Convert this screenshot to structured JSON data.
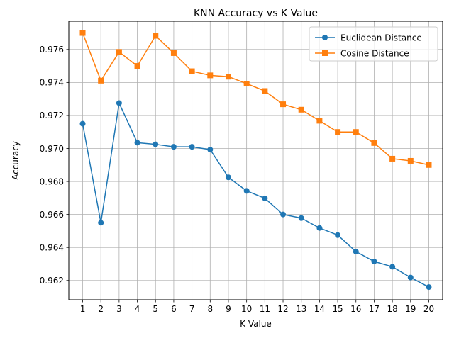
{
  "chart_data": {
    "type": "line",
    "title": "KNN Accuracy vs K Value",
    "xlabel": "K Value",
    "ylabel": "Accuracy",
    "x": [
      1,
      2,
      3,
      4,
      5,
      6,
      7,
      8,
      9,
      10,
      11,
      12,
      13,
      14,
      15,
      16,
      17,
      18,
      19,
      20
    ],
    "xticks": [
      "1",
      "2",
      "3",
      "4",
      "5",
      "6",
      "7",
      "8",
      "9",
      "10",
      "11",
      "12",
      "13",
      "14",
      "15",
      "16",
      "17",
      "18",
      "19",
      "20"
    ],
    "xlim": [
      0.24,
      20.76
    ],
    "ylim": [
      0.96083,
      0.97771
    ],
    "yticks": [
      0.962,
      0.964,
      0.966,
      0.968,
      0.97,
      0.972,
      0.974,
      0.976
    ],
    "ytick_labels": [
      "0.962",
      "0.964",
      "0.966",
      "0.968",
      "0.970",
      "0.972",
      "0.974",
      "0.976"
    ],
    "grid": true,
    "legend_position": "top-right",
    "series": [
      {
        "name": "Euclidean Distance",
        "color": "#1f77b4",
        "marker": "circle",
        "values": [
          0.9715,
          0.9655,
          0.97275,
          0.97035,
          0.97025,
          0.9701,
          0.9701,
          0.96993,
          0.96825,
          0.96743,
          0.96698,
          0.966,
          0.96578,
          0.96518,
          0.96475,
          0.96375,
          0.96315,
          0.96283,
          0.96218,
          0.9616
        ]
      },
      {
        "name": "Cosine Distance",
        "color": "#ff7f0e",
        "marker": "square",
        "values": [
          0.977,
          0.97411,
          0.97585,
          0.975,
          0.97683,
          0.97578,
          0.97468,
          0.97443,
          0.97435,
          0.97393,
          0.97348,
          0.97268,
          0.97235,
          0.97168,
          0.971,
          0.971,
          0.97033,
          0.96938,
          0.96925,
          0.969
        ]
      }
    ]
  }
}
